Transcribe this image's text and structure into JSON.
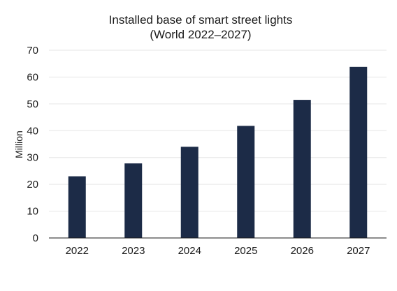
{
  "chart_data": {
    "type": "bar",
    "title": "Installed base of smart street lights",
    "subtitle": "(World 2022–2027)",
    "xlabel": "",
    "ylabel": "Million",
    "categories": [
      "2022",
      "2023",
      "2024",
      "2025",
      "2026",
      "2027"
    ],
    "values": [
      23,
      27.8,
      34,
      41.8,
      51.5,
      63.8
    ],
    "ylim": [
      0,
      70
    ],
    "yticks": [
      "0",
      "10",
      "20",
      "30",
      "40",
      "50",
      "60",
      "70"
    ],
    "grid": true,
    "legend": "none",
    "bar_color": "#1c2b47"
  }
}
